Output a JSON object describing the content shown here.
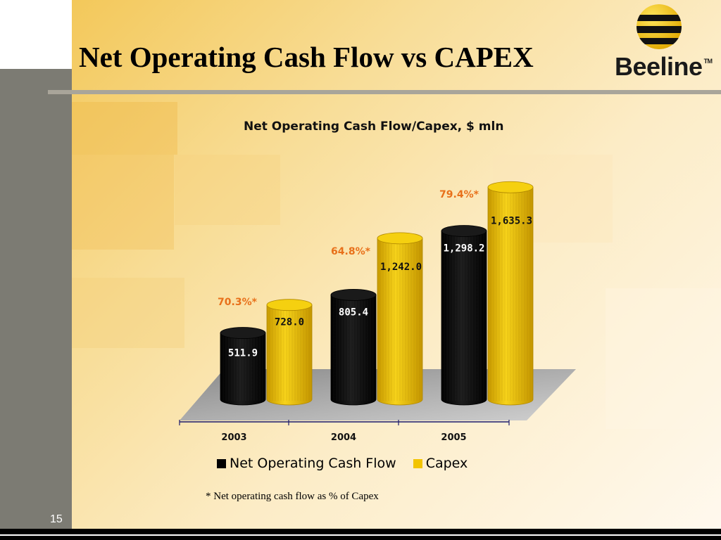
{
  "slide": {
    "title": "Net Operating Cash Flow vs CAPEX",
    "logo_text": "Beeline",
    "logo_tm": "TM",
    "page_number": "15",
    "footnote": "* Net operating cash flow as % of Capex"
  },
  "colors": {
    "series_1": "#0a0a0a",
    "series_2": "#f2c400",
    "percent_label": "#e8701a",
    "left_bar": "#7c7b73"
  },
  "chart_data": {
    "type": "bar",
    "title": "Net Operating Cash Flow/Capex, $ mln",
    "categories": [
      "2003",
      "2004",
      "2005"
    ],
    "series": [
      {
        "name": "Net Operating Cash Flow",
        "values": [
          511.9,
          805.4,
          1298.2
        ],
        "labels": [
          "511.9",
          "805.4",
          "1,298.2"
        ]
      },
      {
        "name": "Capex",
        "values": [
          728.0,
          1242.0,
          1635.3
        ],
        "labels": [
          "728.0",
          "1,242.0",
          "1,635.3"
        ]
      }
    ],
    "annotations": [
      "70.3%*",
      "64.8%*",
      "79.4%*"
    ],
    "ylim": [
      0,
      1700
    ],
    "grid": false,
    "legend_position": "bottom",
    "style": "3d-cylinder"
  }
}
